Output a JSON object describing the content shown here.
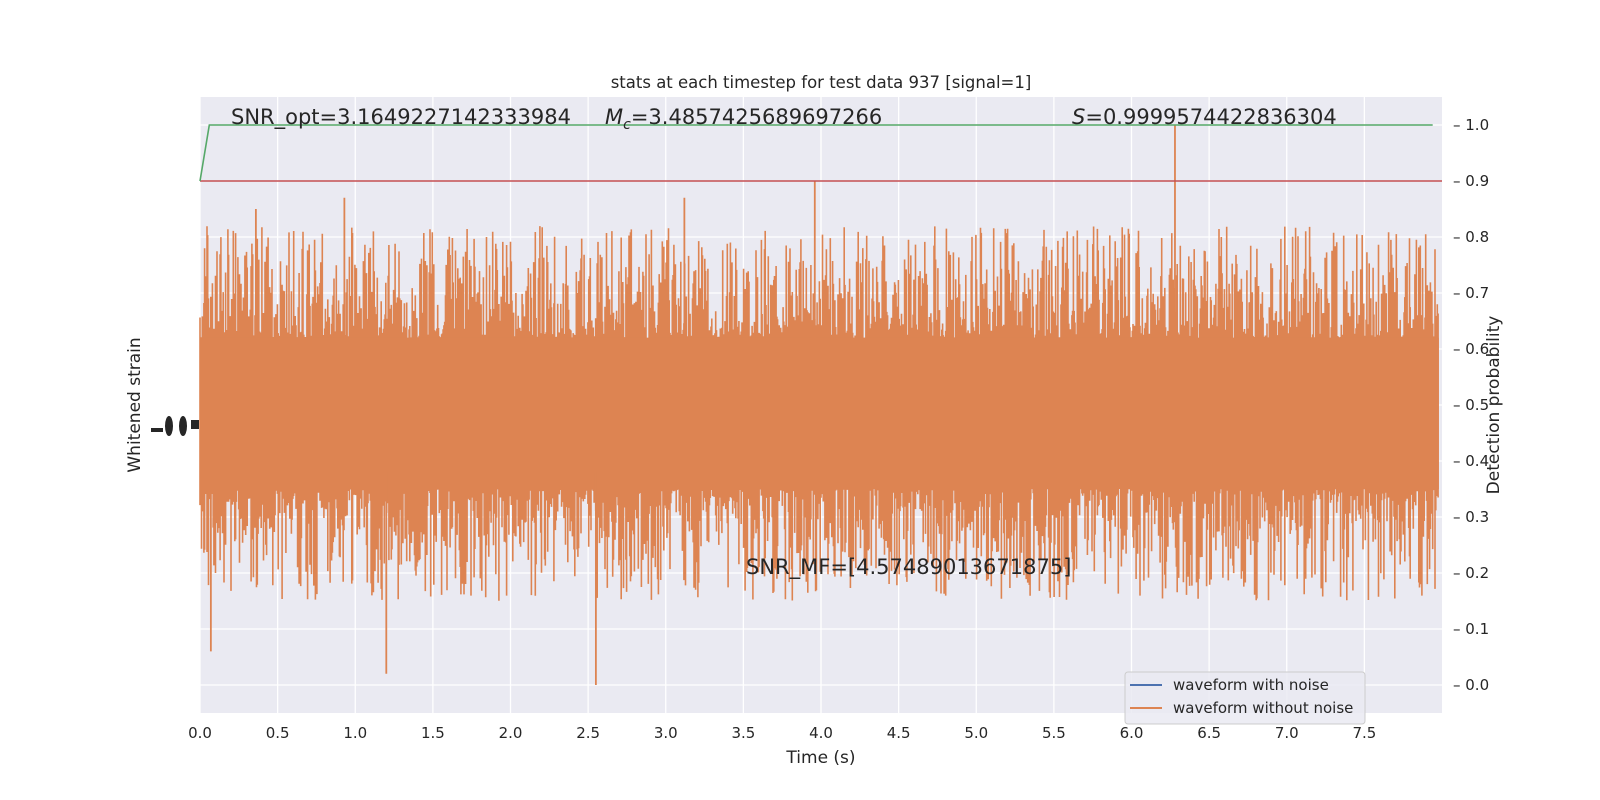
{
  "chart_data": {
    "type": "line",
    "title": "stats at each timestep for test data 937 [signal=1]",
    "xlabel": "Time (s)",
    "ylabel_left": "Whitened strain",
    "ylabel_right": "Detection probability",
    "xlim": [
      0.0,
      8.0
    ],
    "ylim_right": [
      -0.05,
      1.05
    ],
    "x_ticks": [
      "0.0",
      "0.5",
      "1.0",
      "1.5",
      "2.0",
      "2.5",
      "3.0",
      "3.5",
      "4.0",
      "4.5",
      "5.0",
      "5.5",
      "6.0",
      "6.5",
      "7.0",
      "7.5"
    ],
    "y_ticks_right": [
      "0.0",
      "0.1",
      "0.2",
      "0.3",
      "0.4",
      "0.5",
      "0.6",
      "0.7",
      "0.8",
      "0.9",
      "1.0"
    ],
    "grid": true,
    "legend_position": "lower-right",
    "legend": [
      "waveform with noise",
      "waveform without noise"
    ],
    "annotations": {
      "snr_opt": "SNR_opt=3.1649227142333984",
      "mc_symbol": "M",
      "mc_sub": "c",
      "mc_value": "=3.4857425689697266",
      "s_symbol": "S",
      "s_value": "=0.9999574422836304",
      "snr_mf": "SNR_MF=[4.57489013671875]"
    },
    "series": [
      {
        "name": "waveform with noise",
        "color": "#4c72b0",
        "values": "whitened noisy strain (not visible, hidden beneath orange trace)"
      },
      {
        "name": "waveform without noise",
        "color": "#dd8452",
        "envelope": {
          "typical_upper": 0.62,
          "typical_lower": 0.35,
          "peak_max": 1.0,
          "peak_min": 0.0
        },
        "notable_spikes": [
          {
            "x": 6.28,
            "y": 1.0
          },
          {
            "x": 3.96,
            "y": 0.9
          },
          {
            "x": 2.55,
            "y": 0.0
          },
          {
            "x": 1.2,
            "y": 0.02
          },
          {
            "x": 0.36,
            "y": 0.85
          },
          {
            "x": 0.93,
            "y": 0.87
          },
          {
            "x": 3.12,
            "y": 0.87
          },
          {
            "x": 0.07,
            "y": 0.06
          }
        ]
      },
      {
        "name": "detection probability",
        "color": "#55a868",
        "points": [
          [
            0.0,
            0.9
          ],
          [
            0.06,
            1.0
          ],
          [
            7.94,
            1.0
          ]
        ]
      },
      {
        "name": "threshold",
        "color": "#c44e52",
        "points": [
          [
            0.0,
            0.9
          ],
          [
            8.0,
            0.9
          ]
        ]
      }
    ]
  }
}
